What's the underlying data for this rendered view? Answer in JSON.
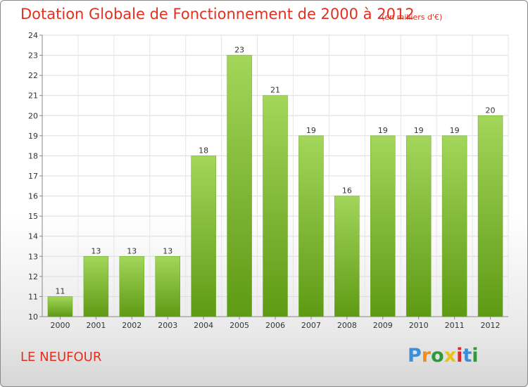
{
  "chart_data": {
    "type": "bar",
    "title": "Dotation Globale de Fonctionnement de 2000 à 2012",
    "subtitle": "(en milliers d'€)",
    "categories": [
      "2000",
      "2001",
      "2002",
      "2003",
      "2004",
      "2005",
      "2006",
      "2007",
      "2008",
      "2009",
      "2010",
      "2011",
      "2012"
    ],
    "values": [
      11,
      13,
      13,
      13,
      18,
      23,
      21,
      19,
      16,
      19,
      19,
      19,
      20
    ],
    "ylim": [
      10,
      24
    ],
    "yticks": [
      10,
      11,
      12,
      13,
      14,
      15,
      16,
      17,
      18,
      19,
      20,
      21,
      22,
      23,
      24
    ],
    "ytick_labels": [
      "10",
      "11",
      "12",
      "13",
      "14",
      "15",
      "16",
      "17",
      "18",
      "19",
      "20",
      "21",
      "22",
      "23",
      "24"
    ],
    "grid": true,
    "bar_color_top": "#a3d65a",
    "bar_color_bottom": "#5e9a14"
  },
  "footer": {
    "commune": "LE NEUFOUR",
    "logo_letters": [
      "P",
      "r",
      "o",
      "x",
      "i",
      "t",
      "i"
    ],
    "logo_colors": [
      "#3a8fd8",
      "#f28c1a",
      "#2a9a3c",
      "#e8c21a",
      "#d82a2a",
      "#3a8fd8",
      "#2a9a3c"
    ]
  }
}
